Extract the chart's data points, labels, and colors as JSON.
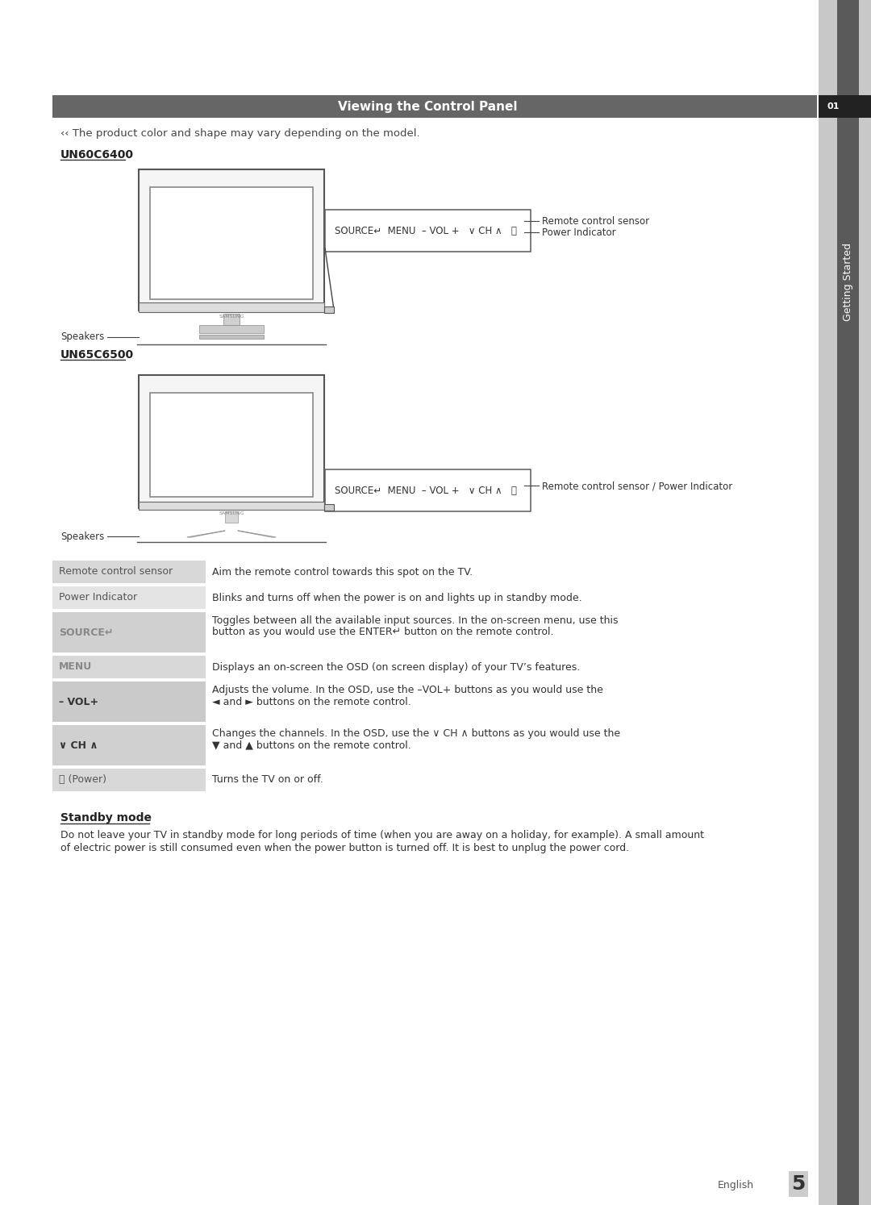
{
  "title": "Viewing the Control Panel",
  "title_bg": "#666666",
  "title_color": "#ffffff",
  "page_bg": "#ffffff",
  "note_text": "‹‹ The product color and shape may vary depending on the model.",
  "model1": "UN60C6400",
  "model2": "UN65C6500",
  "button_bar_text": "SOURCE↵  MENU  – VOL +   ∨ CH ∧   ⏻",
  "speakers_label": "Speakers",
  "remote_sensor_label": "Remote control sensor",
  "power_indicator_label": "Power Indicator",
  "remote_sensor_power_label": "Remote control sensor / Power Indicator",
  "sidebar_text": "Getting Started",
  "sidebar_num": "01",
  "page_num": "5",
  "page_lang": "English",
  "table_rows": [
    {
      "label": "Remote control sensor",
      "label_bold": false,
      "label_color": "#555555",
      "bg": "#d8d8d8",
      "description": "Aim the remote control towards this spot on the TV."
    },
    {
      "label": "Power Indicator",
      "label_bold": false,
      "label_color": "#555555",
      "bg": "#e4e4e4",
      "description": "Blinks and turns off when the power is on and lights up in standby mode."
    },
    {
      "label": "SOURCE↵",
      "label_bold": true,
      "label_color": "#888888",
      "bg": "#d0d0d0",
      "description": "Toggles between all the available input sources. In the on-screen menu, use this\nbutton as you would use the ENTER↵ button on the remote control."
    },
    {
      "label": "MENU",
      "label_bold": true,
      "label_color": "#888888",
      "bg": "#d8d8d8",
      "description": "Displays an on-screen the OSD (on screen display) of your TV’s features."
    },
    {
      "label": "– VOL+",
      "label_bold": true,
      "label_color": "#333333",
      "bg": "#cacaca",
      "description": "Adjusts the volume. In the OSD, use the –VOL+ buttons as you would use the\n◄ and ► buttons on the remote control."
    },
    {
      "label": "∨ CH ∧",
      "label_bold": true,
      "label_color": "#333333",
      "bg": "#d0d0d0",
      "description": "Changes the channels. In the OSD, use the ∨ CH ∧ buttons as you would use the\n▼ and ▲ buttons on the remote control."
    },
    {
      "label": "⏻ (Power)",
      "label_bold": false,
      "label_color": "#555555",
      "bg": "#d8d8d8",
      "description": "Turns the TV on or off."
    }
  ],
  "standby_title": "Standby mode",
  "standby_text1": "Do not leave your TV in standby mode for long periods of time (when you are away on a holiday, for example). A small amount",
  "standby_text2": "of electric power is still consumed even when the power button is turned off. It is best to unplug the power cord."
}
